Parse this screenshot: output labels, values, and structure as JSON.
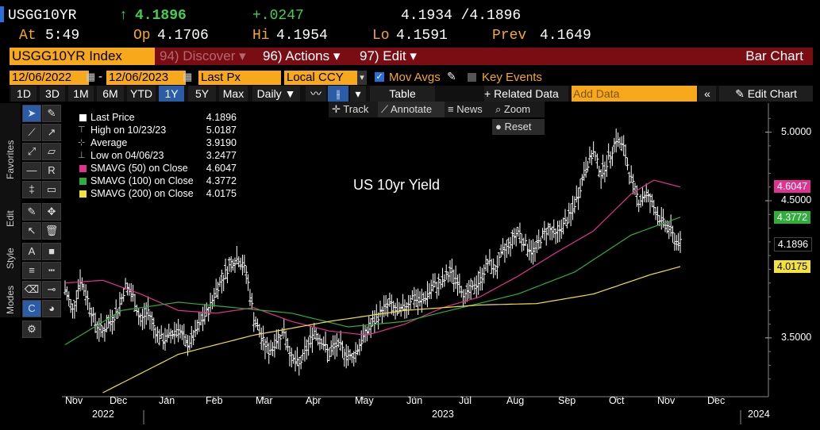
{
  "header": {
    "ticker": "USGG10YR",
    "last": "4.1896",
    "arrow": "↑",
    "change": "+.0247",
    "bidask": "4.1934 /4.1896",
    "at_label": "At",
    "at_time": "5:49",
    "op_label": "Op",
    "op": "4.1706",
    "hi_label": "Hi",
    "hi": "4.1954",
    "lo_label": "Lo",
    "lo": "4.1591",
    "prev_label": "Prev",
    "prev": "4.1649"
  },
  "menubar": {
    "index": "USGG10YR Index",
    "discover": "94) Discover",
    "actions": "96) Actions",
    "edit": "97) Edit",
    "chart_type": "Bar Chart"
  },
  "controls": {
    "start_date": "12/06/2022",
    "dash": "-",
    "end_date": "12/06/2023",
    "field": "Last Px",
    "currency": "Local CCY",
    "mov_avgs": "Mov Avgs",
    "key_events": "Key Events"
  },
  "toolbar": {
    "ranges": [
      "1D",
      "3D",
      "1M",
      "6M",
      "YTD",
      "1Y",
      "5Y",
      "Max"
    ],
    "selected_range": "1Y",
    "period": "Daily",
    "table": "Table",
    "related": "+ Related Data",
    "add_data_placeholder": "Add Data",
    "edit_chart": "Edit Chart",
    "track": "Track",
    "annotate": "Annotate",
    "news": "News",
    "zoom": "Zoom",
    "reset": "Reset"
  },
  "side_tabs": [
    "Favorites",
    "Edit",
    "Style",
    "Modes"
  ],
  "legend": [
    {
      "label": "Last Price",
      "value": "4.1896",
      "color": "#ffffff"
    },
    {
      "label": "High on 10/23/23",
      "value": "5.0187",
      "color": ""
    },
    {
      "label": "Average",
      "value": "3.9190",
      "color": ""
    },
    {
      "label": "Low on 04/06/23",
      "value": "3.2477",
      "color": ""
    },
    {
      "label": "SMAVG (50)  on Close",
      "value": "4.6047",
      "color": "#e0338f"
    },
    {
      "label": "SMAVG (100)  on Close",
      "value": "4.3772",
      "color": "#2fae3a"
    },
    {
      "label": "SMAVG (200)  on Close",
      "value": "4.0175",
      "color": "#f2e23a"
    }
  ],
  "annotation": "US 10yr Yield",
  "chart_data": {
    "type": "bar",
    "title": "US 10yr Yield",
    "ylim": [
      3.1,
      5.2
    ],
    "yticks": [
      "5.0000",
      "4.5000",
      "3.5000"
    ],
    "ytick_values": [
      5.0,
      4.5,
      3.5
    ],
    "xticks": [
      "Nov",
      "Dec",
      "Jan",
      "Feb",
      "Mar",
      "Apr",
      "May",
      "Jun",
      "Jul",
      "Aug",
      "Sep",
      "Oct",
      "Nov",
      "Dec"
    ],
    "years": [
      "2022",
      "2023",
      "2024"
    ],
    "tags": [
      {
        "text": "4.6047",
        "value": 4.6047,
        "color": "#e0338f"
      },
      {
        "text": "4.3772",
        "value": 4.3772,
        "color": "#2fae3a"
      },
      {
        "text": "4.1896",
        "value": 4.1896,
        "color": "#000000"
      },
      {
        "text": "4.0175",
        "value": 4.0175,
        "color": "#f2e23a"
      }
    ],
    "price_anchors": [
      [
        0,
        3.85
      ],
      [
        4,
        3.7
      ],
      [
        8,
        3.92
      ],
      [
        12,
        3.78
      ],
      [
        16,
        3.6
      ],
      [
        20,
        3.55
      ],
      [
        24,
        3.62
      ],
      [
        28,
        3.7
      ],
      [
        32,
        3.88
      ],
      [
        36,
        3.8
      ],
      [
        40,
        3.62
      ],
      [
        44,
        3.7
      ],
      [
        48,
        3.55
      ],
      [
        52,
        3.48
      ],
      [
        56,
        3.52
      ],
      [
        60,
        3.58
      ],
      [
        64,
        3.45
      ],
      [
        68,
        3.5
      ],
      [
        72,
        3.62
      ],
      [
        76,
        3.7
      ],
      [
        80,
        3.85
      ],
      [
        84,
        3.95
      ],
      [
        88,
        4.05
      ],
      [
        92,
        4.08
      ],
      [
        96,
        3.98
      ],
      [
        100,
        3.65
      ],
      [
        104,
        3.5
      ],
      [
        108,
        3.4
      ],
      [
        112,
        3.48
      ],
      [
        116,
        3.55
      ],
      [
        120,
        3.35
      ],
      [
        124,
        3.3
      ],
      [
        128,
        3.42
      ],
      [
        132,
        3.55
      ],
      [
        136,
        3.48
      ],
      [
        140,
        3.38
      ],
      [
        144,
        3.45
      ],
      [
        148,
        3.4
      ],
      [
        152,
        3.35
      ],
      [
        156,
        3.45
      ],
      [
        160,
        3.55
      ],
      [
        164,
        3.62
      ],
      [
        168,
        3.7
      ],
      [
        172,
        3.75
      ],
      [
        176,
        3.68
      ],
      [
        180,
        3.72
      ],
      [
        184,
        3.8
      ],
      [
        188,
        3.75
      ],
      [
        192,
        3.82
      ],
      [
        196,
        3.88
      ],
      [
        200,
        3.9
      ],
      [
        204,
        3.98
      ],
      [
        208,
        3.92
      ],
      [
        212,
        3.8
      ],
      [
        216,
        3.86
      ],
      [
        220,
        3.92
      ],
      [
        224,
        4.05
      ],
      [
        228,
        4.0
      ],
      [
        232,
        4.12
      ],
      [
        236,
        4.2
      ],
      [
        240,
        4.28
      ],
      [
        244,
        4.18
      ],
      [
        248,
        4.12
      ],
      [
        252,
        4.22
      ],
      [
        256,
        4.3
      ],
      [
        260,
        4.25
      ],
      [
        264,
        4.32
      ],
      [
        268,
        4.4
      ],
      [
        272,
        4.55
      ],
      [
        276,
        4.75
      ],
      [
        280,
        4.85
      ],
      [
        284,
        4.7
      ],
      [
        288,
        4.8
      ],
      [
        292,
        4.95
      ],
      [
        296,
        4.88
      ],
      [
        300,
        4.65
      ],
      [
        304,
        4.5
      ],
      [
        308,
        4.55
      ],
      [
        312,
        4.45
      ],
      [
        316,
        4.35
      ],
      [
        320,
        4.3
      ],
      [
        324,
        4.2
      ],
      [
        326,
        4.19
      ]
    ],
    "sma50_anchors": [
      [
        0,
        3.9
      ],
      [
        20,
        3.92
      ],
      [
        40,
        3.82
      ],
      [
        60,
        3.7
      ],
      [
        80,
        3.68
      ],
      [
        100,
        3.72
      ],
      [
        120,
        3.62
      ],
      [
        140,
        3.55
      ],
      [
        160,
        3.52
      ],
      [
        180,
        3.6
      ],
      [
        200,
        3.72
      ],
      [
        220,
        3.8
      ],
      [
        240,
        3.95
      ],
      [
        260,
        4.12
      ],
      [
        280,
        4.28
      ],
      [
        300,
        4.55
      ],
      [
        312,
        4.65
      ],
      [
        326,
        4.6
      ]
    ],
    "sma100_anchors": [
      [
        0,
        3.45
      ],
      [
        30,
        3.7
      ],
      [
        60,
        3.76
      ],
      [
        90,
        3.72
      ],
      [
        120,
        3.68
      ],
      [
        150,
        3.58
      ],
      [
        180,
        3.62
      ],
      [
        210,
        3.72
      ],
      [
        240,
        3.82
      ],
      [
        270,
        3.98
      ],
      [
        300,
        4.25
      ],
      [
        326,
        4.38
      ]
    ],
    "sma200_anchors": [
      [
        20,
        3.1
      ],
      [
        60,
        3.38
      ],
      [
        100,
        3.52
      ],
      [
        140,
        3.62
      ],
      [
        180,
        3.7
      ],
      [
        220,
        3.74
      ],
      [
        250,
        3.75
      ],
      [
        280,
        3.82
      ],
      [
        310,
        3.96
      ],
      [
        326,
        4.02
      ]
    ]
  }
}
